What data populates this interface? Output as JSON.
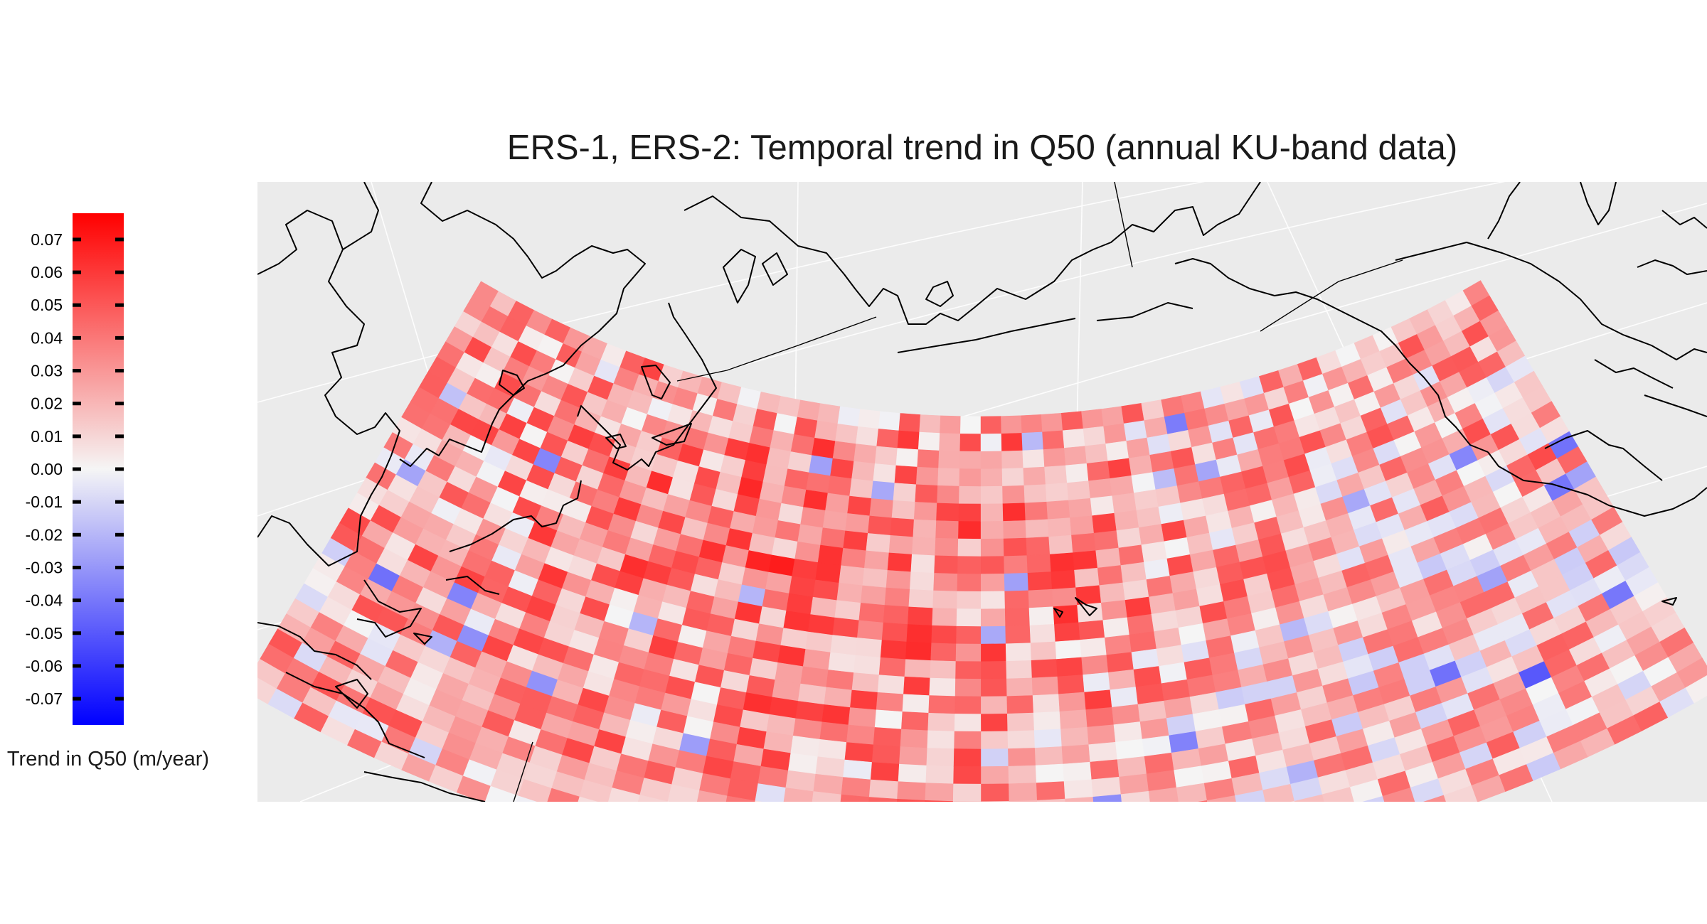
{
  "title": "ERS-1, ERS-2: Temporal trend in Q50 (annual KU-band data)",
  "legend": {
    "title": "Trend in Q50 (m/year)",
    "ticks": [
      "0.07",
      "0.06",
      "0.05",
      "0.04",
      "0.03",
      "0.02",
      "0.01",
      "0.00",
      "-0.01",
      "-0.02",
      "-0.03",
      "-0.04",
      "-0.05",
      "-0.06",
      "-0.07"
    ],
    "range": [
      -0.078,
      0.078
    ],
    "colors": {
      "low": "#0000ff",
      "mid": "#f5f5f5",
      "high": "#ff0000"
    }
  },
  "map": {
    "region": "North Pacific",
    "background_color": "#ebebeb",
    "land_outline_color": "#000000",
    "graticule_color": "#ffffff",
    "grid": {
      "columns": 52,
      "rows": 27
    }
  }
}
